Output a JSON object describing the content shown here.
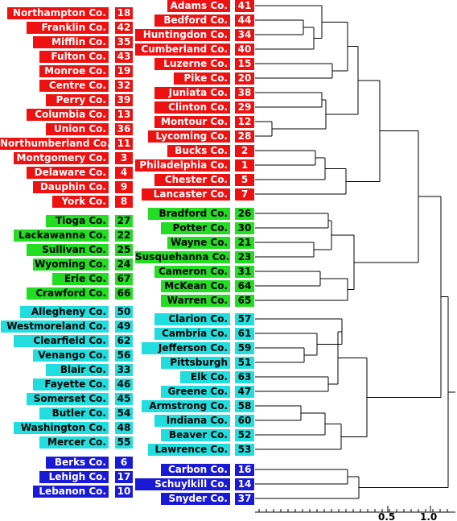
{
  "colors": {
    "red": "#ee1111",
    "green": "#22dd22",
    "cyan": "#22dddd",
    "blue": "#1a1ad6"
  },
  "axis": {
    "scale": "log",
    "ticks": [
      "0.5",
      "1.0"
    ]
  },
  "left_labels": [
    {
      "name": "Northampton Co.",
      "code": "18",
      "group": "red"
    },
    {
      "name": "Franklin Co.",
      "code": "42",
      "group": "red"
    },
    {
      "name": "Mifflin Co.",
      "code": "35",
      "group": "red"
    },
    {
      "name": "Fulton Co.",
      "code": "43",
      "group": "red"
    },
    {
      "name": "Monroe Co.",
      "code": "19",
      "group": "red"
    },
    {
      "name": "Centre Co.",
      "code": "32",
      "group": "red"
    },
    {
      "name": "Perry Co.",
      "code": "39",
      "group": "red"
    },
    {
      "name": "Columbia Co.",
      "code": "13",
      "group": "red"
    },
    {
      "name": "Union Co.",
      "code": "36",
      "group": "red"
    },
    {
      "name": "Northumberland Co.",
      "code": "11",
      "group": "red"
    },
    {
      "name": "Montgomery Co.",
      "code": "3",
      "group": "red"
    },
    {
      "name": "Delaware Co.",
      "code": "4",
      "group": "red"
    },
    {
      "name": "Dauphin Co.",
      "code": "9",
      "group": "red"
    },
    {
      "name": "York Co.",
      "code": "8",
      "group": "red"
    },
    {
      "name": "Tioga Co.",
      "code": "27",
      "group": "green"
    },
    {
      "name": "Lackawanna Co.",
      "code": "22",
      "group": "green"
    },
    {
      "name": "Sullivan Co.",
      "code": "25",
      "group": "green"
    },
    {
      "name": "Wyoming Co.",
      "code": "24",
      "group": "green"
    },
    {
      "name": "Erie Co.",
      "code": "67",
      "group": "green"
    },
    {
      "name": "Crawford Co.",
      "code": "66",
      "group": "green"
    },
    {
      "name": "Allegheny Co.",
      "code": "50",
      "group": "cyan"
    },
    {
      "name": "Westmoreland Co.",
      "code": "49",
      "group": "cyan"
    },
    {
      "name": "Clearfield Co.",
      "code": "62",
      "group": "cyan"
    },
    {
      "name": "Venango Co.",
      "code": "56",
      "group": "cyan"
    },
    {
      "name": "Blair Co.",
      "code": "33",
      "group": "cyan"
    },
    {
      "name": "Fayette Co.",
      "code": "46",
      "group": "cyan"
    },
    {
      "name": "Somerset Co.",
      "code": "45",
      "group": "cyan"
    },
    {
      "name": "Butler Co.",
      "code": "54",
      "group": "cyan"
    },
    {
      "name": "Washington Co.",
      "code": "48",
      "group": "cyan"
    },
    {
      "name": "Mercer Co.",
      "code": "55",
      "group": "cyan"
    },
    {
      "name": "Berks Co.",
      "code": "6",
      "group": "blue"
    },
    {
      "name": "Lehigh Co.",
      "code": "17",
      "group": "blue"
    },
    {
      "name": "Lebanon Co.",
      "code": "10",
      "group": "blue"
    }
  ],
  "leaves": [
    {
      "name": "Adams Co.",
      "code": "41",
      "group": "red"
    },
    {
      "name": "Bedford Co.",
      "code": "44",
      "group": "red"
    },
    {
      "name": "Huntingdon Co.",
      "code": "34",
      "group": "red"
    },
    {
      "name": "Cumberland Co.",
      "code": "40",
      "group": "red"
    },
    {
      "name": "Luzerne Co.",
      "code": "15",
      "group": "red"
    },
    {
      "name": "Pike Co.",
      "code": "20",
      "group": "red"
    },
    {
      "name": "Juniata Co.",
      "code": "38",
      "group": "red"
    },
    {
      "name": "Clinton Co.",
      "code": "29",
      "group": "red"
    },
    {
      "name": "Montour Co.",
      "code": "12",
      "group": "red"
    },
    {
      "name": "Lycoming Co.",
      "code": "28",
      "group": "red"
    },
    {
      "name": "Bucks Co.",
      "code": "2",
      "group": "red"
    },
    {
      "name": "Philadelphia Co.",
      "code": "1",
      "group": "red"
    },
    {
      "name": "Chester Co.",
      "code": "5",
      "group": "red"
    },
    {
      "name": "Lancaster Co.",
      "code": "7",
      "group": "red"
    },
    {
      "name": "Bradford Co.",
      "code": "26",
      "group": "green"
    },
    {
      "name": "Potter Co.",
      "code": "30",
      "group": "green"
    },
    {
      "name": "Wayne Co.",
      "code": "21",
      "group": "green"
    },
    {
      "name": "Susquehanna Co.",
      "code": "23",
      "group": "green"
    },
    {
      "name": "Cameron Co.",
      "code": "31",
      "group": "green"
    },
    {
      "name": "McKean Co.",
      "code": "64",
      "group": "green"
    },
    {
      "name": "Warren Co.",
      "code": "65",
      "group": "green"
    },
    {
      "name": "Clarion Co.",
      "code": "57",
      "group": "cyan"
    },
    {
      "name": "Cambria Co.",
      "code": "61",
      "group": "cyan"
    },
    {
      "name": "Jefferson Co.",
      "code": "59",
      "group": "cyan"
    },
    {
      "name": "Pittsburgh",
      "code": "51",
      "group": "cyan"
    },
    {
      "name": "Elk Co.",
      "code": "63",
      "group": "cyan"
    },
    {
      "name": "Greene Co.",
      "code": "47",
      "group": "cyan"
    },
    {
      "name": "Armstrong Co.",
      "code": "58",
      "group": "cyan"
    },
    {
      "name": "Indiana Co.",
      "code": "60",
      "group": "cyan"
    },
    {
      "name": "Beaver Co.",
      "code": "52",
      "group": "cyan"
    },
    {
      "name": "Lawrence Co.",
      "code": "53",
      "group": "cyan"
    },
    {
      "name": "Carbon Co.",
      "code": "16",
      "group": "blue"
    },
    {
      "name": "Schuylkill Co.",
      "code": "14",
      "group": "blue"
    },
    {
      "name": "Snyder Co.",
      "code": "37",
      "group": "blue"
    }
  ]
}
